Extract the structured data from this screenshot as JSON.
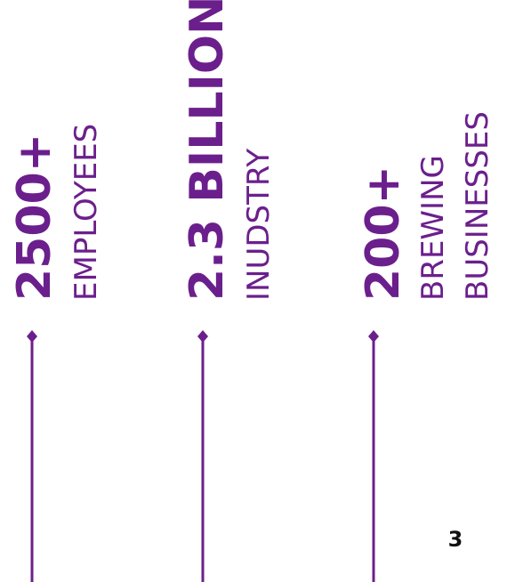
{
  "stats": [
    {
      "value": "2500+",
      "label": [
        "EMPLOYEES"
      ]
    },
    {
      "value": "2.3 BILLION",
      "label": [
        "INUDSTRY"
      ]
    },
    {
      "value": "200+",
      "label": [
        "BREWING",
        "BUSINESSES"
      ]
    }
  ],
  "page_number": "3"
}
